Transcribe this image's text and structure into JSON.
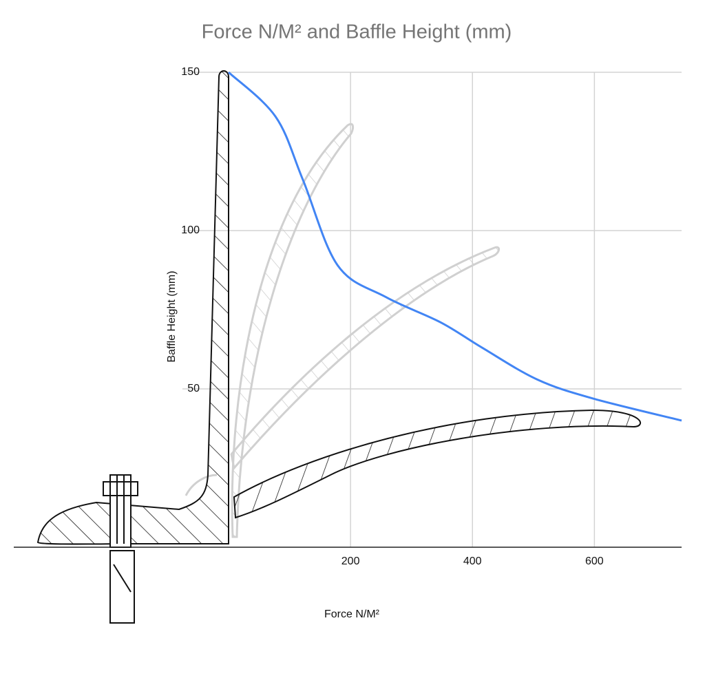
{
  "chart_data": {
    "type": "line",
    "title": "Force N/M² and Baffle Height (mm)",
    "x_label": "Force N/M²",
    "y_label": "Baffle Height (mm)",
    "x": [
      0,
      77,
      122,
      179,
      258,
      348,
      416,
      506,
      597,
      743
    ],
    "series": [
      {
        "color": "#4285f4",
        "values": [
          150,
          136,
          116,
          89,
          79,
          71,
          63,
          53,
          47,
          40
        ]
      }
    ],
    "xlim": [
      0,
      743
    ],
    "ylim": [
      0,
      150
    ],
    "xticks": [
      200,
      400,
      600
    ],
    "yticks": [
      50,
      100,
      150
    ],
    "grid": true
  }
}
